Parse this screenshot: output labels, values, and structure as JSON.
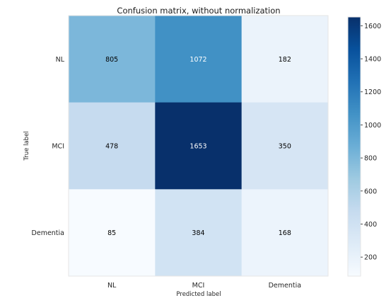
{
  "chart_data": {
    "type": "heatmap",
    "title": "Confusion matrix, without normalization",
    "xlabel": "Predicted label",
    "ylabel": "True label",
    "x_categories": [
      "NL",
      "MCI",
      "Dementia"
    ],
    "y_categories": [
      "NL",
      "MCI",
      "Dementia"
    ],
    "values": [
      [
        805,
        1072,
        182
      ],
      [
        478,
        1653,
        350
      ],
      [
        85,
        384,
        168
      ]
    ],
    "colormap": "Blues",
    "vmin": 85,
    "vmax": 1653,
    "colorbar_ticks": [
      200,
      400,
      600,
      800,
      1000,
      1200,
      1400,
      1600
    ],
    "grid": false,
    "colorbar_position": "right"
  }
}
